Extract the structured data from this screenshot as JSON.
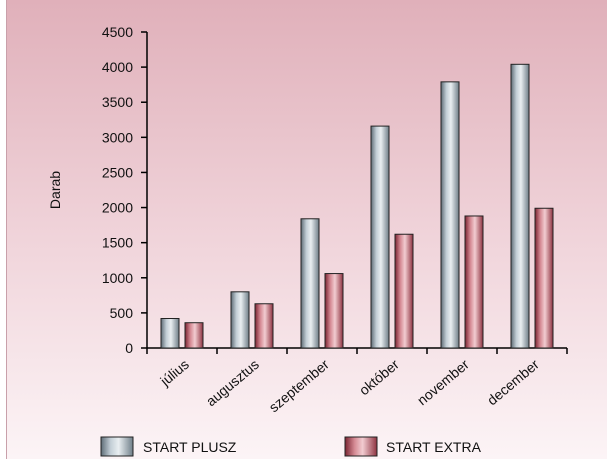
{
  "chart_data": {
    "type": "bar",
    "ylabel": "Darab",
    "xlabel": "",
    "ylim": [
      0,
      4500
    ],
    "yticks": [
      "0",
      "500",
      "1000",
      "1500",
      "2000",
      "2500",
      "3000",
      "3500",
      "4000",
      "4500"
    ],
    "categories": [
      "július",
      "augusztus",
      "szeptember",
      "október",
      "november",
      "december"
    ],
    "series": [
      {
        "name": "START PLUSZ",
        "values": [
          420,
          800,
          1840,
          3160,
          3790,
          4040
        ]
      },
      {
        "name": "START EXTRA",
        "values": [
          360,
          630,
          1060,
          1620,
          1880,
          1990
        ]
      }
    ],
    "legend_position": "bottom",
    "grid": false
  },
  "colors": {
    "background_top": "#e2b4bd",
    "background_bottom": "#fbf2f4",
    "series_1": "#8c9ba6",
    "series_2": "#b2545f"
  }
}
